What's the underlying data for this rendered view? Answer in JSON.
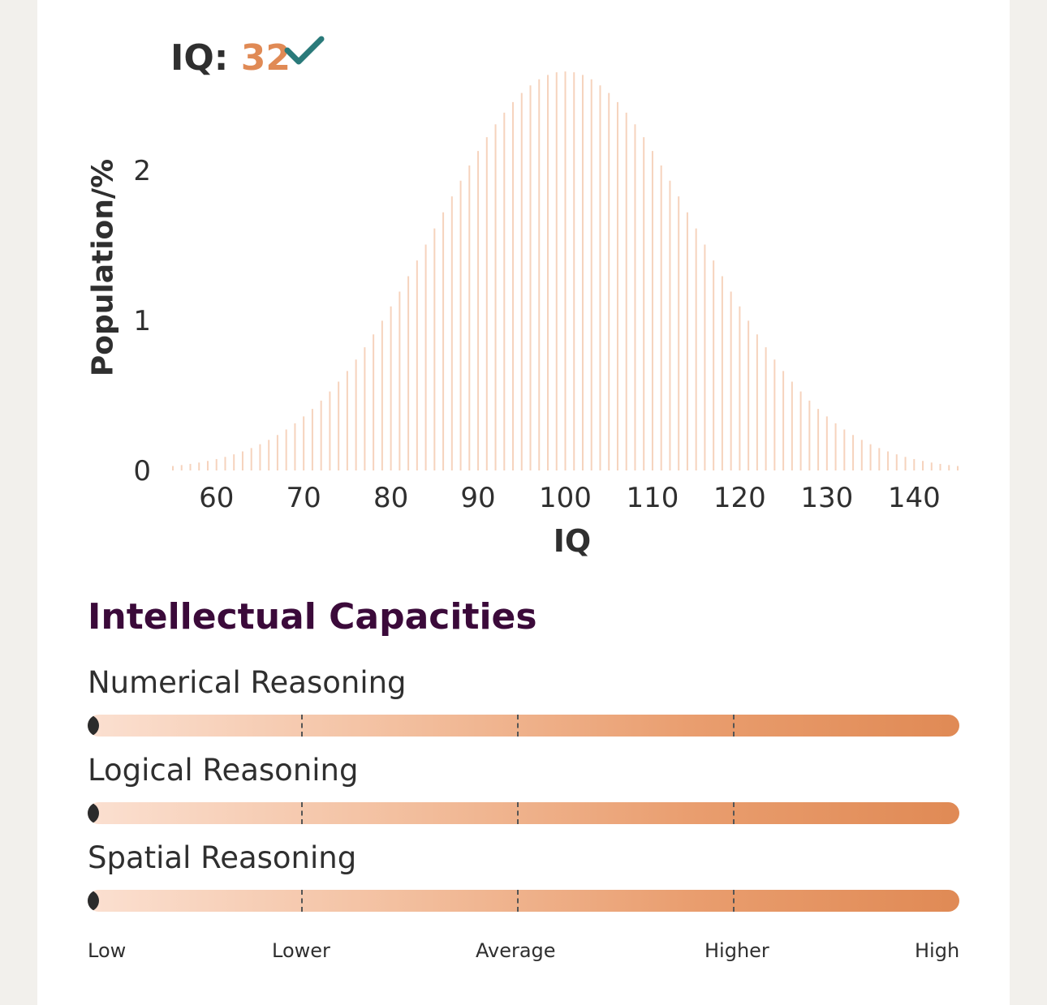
{
  "iq_result": {
    "prefix": "IQ:",
    "score": "32",
    "icon": "check-icon"
  },
  "chart_data": {
    "type": "bar",
    "xlabel": "IQ",
    "ylabel": "Population/%",
    "x_ticks": [
      60,
      70,
      80,
      90,
      100,
      110,
      120,
      130,
      140
    ],
    "y_ticks": [
      0,
      1,
      2
    ],
    "xlim": [
      55,
      145
    ],
    "ylim": [
      0,
      2.66
    ],
    "distribution": "normal",
    "mean": 100,
    "sd": 15,
    "bar_step": 1,
    "bar_color": "#f6d3bd",
    "grid": false,
    "legend": "none"
  },
  "capacities": {
    "title": "Intellectual Capacities",
    "items": [
      {
        "label": "Numerical Reasoning",
        "level": 0
      },
      {
        "label": "Logical Reasoning",
        "level": 0
      },
      {
        "label": "Spatial Reasoning",
        "level": 0
      }
    ],
    "scale": [
      "Low",
      "Lower",
      "Average",
      "Higher",
      "High"
    ]
  },
  "colors": {
    "accent": "#e08a55",
    "title": "#3b0a3a",
    "check": "#2a7a7a",
    "background": "#f2f0ec"
  }
}
